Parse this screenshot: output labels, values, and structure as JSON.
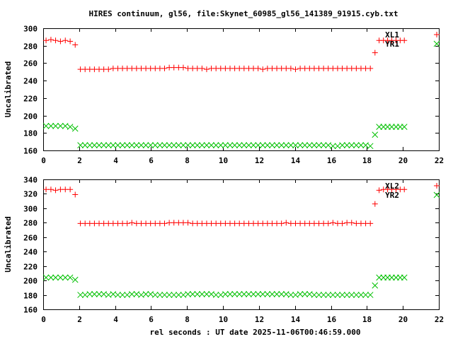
{
  "title": "HIRES continuum, gl56, file:Skynet_60985_gl56_141389_91915.cyb.txt",
  "colors": {
    "plus": "#ff0000",
    "cross": "#00c000",
    "axis": "#000000"
  },
  "chart_data": [
    {
      "type": "scatter",
      "ylabel": "Uncalibrated",
      "xlabel": "",
      "xlim": [
        0,
        22
      ],
      "ylim": [
        160,
        300
      ],
      "xticks": [
        0,
        2,
        4,
        6,
        8,
        10,
        12,
        14,
        16,
        18,
        20,
        22
      ],
      "yticks": [
        160,
        180,
        200,
        220,
        240,
        260,
        280,
        300
      ],
      "legend_position": "top-right",
      "x": [
        0.16,
        0.43,
        0.69,
        0.96,
        1.23,
        1.5,
        1.78,
        2.07,
        2.33,
        2.59,
        2.85,
        3.11,
        3.37,
        3.63,
        3.89,
        4.15,
        4.41,
        4.67,
        4.93,
        5.19,
        5.45,
        5.71,
        5.97,
        6.23,
        6.49,
        6.75,
        7.01,
        7.27,
        7.53,
        7.79,
        8.05,
        8.31,
        8.57,
        8.83,
        9.09,
        9.35,
        9.61,
        9.87,
        10.13,
        10.39,
        10.65,
        10.91,
        11.17,
        11.43,
        11.69,
        11.95,
        12.21,
        12.47,
        12.73,
        12.99,
        13.25,
        13.51,
        13.77,
        14.03,
        14.29,
        14.55,
        14.81,
        15.07,
        15.33,
        15.59,
        15.85,
        16.11,
        16.37,
        16.63,
        16.89,
        17.15,
        17.41,
        17.67,
        17.93,
        18.19,
        18.45,
        18.68,
        18.92,
        19.15,
        19.38,
        19.62,
        19.85,
        20.08
      ],
      "series": [
        {
          "name": "XL1",
          "marker": "plus",
          "values": [
            286,
            287,
            286,
            285,
            286,
            285,
            281,
            253,
            253,
            253,
            253,
            253,
            253,
            253,
            254,
            254,
            254,
            254,
            254,
            254,
            254,
            254,
            254,
            254,
            254,
            254,
            255,
            255,
            255,
            255,
            254,
            254,
            254,
            254,
            253,
            254,
            254,
            254,
            254,
            254,
            254,
            254,
            254,
            254,
            254,
            254,
            253,
            254,
            254,
            254,
            254,
            254,
            254,
            253,
            254,
            254,
            254,
            254,
            254,
            254,
            254,
            254,
            254,
            254,
            254,
            254,
            254,
            254,
            254,
            254,
            272,
            286,
            286,
            286,
            286,
            286,
            286,
            286
          ]
        },
        {
          "name": "YR1",
          "marker": "cross",
          "values": [
            188,
            188,
            188,
            188,
            188,
            187,
            185,
            166,
            166,
            166,
            166,
            166,
            166,
            166,
            166,
            166,
            166,
            166,
            166,
            166,
            166,
            166,
            166,
            166,
            166,
            166,
            166,
            166,
            166,
            166,
            166,
            166,
            166,
            166,
            166,
            166,
            166,
            166,
            166,
            166,
            166,
            166,
            166,
            166,
            166,
            166,
            166,
            166,
            166,
            166,
            166,
            166,
            166,
            166,
            166,
            166,
            166,
            166,
            166,
            166,
            166,
            165,
            165,
            166,
            166,
            166,
            166,
            166,
            166,
            165,
            178,
            187,
            187,
            187,
            187,
            187,
            187,
            187
          ]
        }
      ]
    },
    {
      "type": "scatter",
      "ylabel": "Uncalibrated",
      "xlabel": "rel seconds : UT date 2025-11-06T00:46:59.000",
      "xlim": [
        0,
        22
      ],
      "ylim": [
        160,
        340
      ],
      "xticks": [
        0,
        2,
        4,
        6,
        8,
        10,
        12,
        14,
        16,
        18,
        20,
        22
      ],
      "yticks": [
        160,
        180,
        200,
        220,
        240,
        260,
        280,
        300,
        320,
        340
      ],
      "legend_position": "top-right",
      "x": [
        0.16,
        0.43,
        0.69,
        0.96,
        1.23,
        1.5,
        1.78,
        2.07,
        2.33,
        2.59,
        2.85,
        3.11,
        3.37,
        3.63,
        3.89,
        4.15,
        4.41,
        4.67,
        4.93,
        5.19,
        5.45,
        5.71,
        5.97,
        6.23,
        6.49,
        6.75,
        7.01,
        7.27,
        7.53,
        7.79,
        8.05,
        8.31,
        8.57,
        8.83,
        9.09,
        9.35,
        9.61,
        9.87,
        10.13,
        10.39,
        10.65,
        10.91,
        11.17,
        11.43,
        11.69,
        11.95,
        12.21,
        12.47,
        12.73,
        12.99,
        13.25,
        13.51,
        13.77,
        14.03,
        14.29,
        14.55,
        14.81,
        15.07,
        15.33,
        15.59,
        15.85,
        16.11,
        16.37,
        16.63,
        16.89,
        17.15,
        17.41,
        17.67,
        17.93,
        18.19,
        18.45,
        18.68,
        18.92,
        19.15,
        19.38,
        19.62,
        19.85,
        20.08
      ],
      "series": [
        {
          "name": "XL2",
          "marker": "plus",
          "values": [
            326,
            326,
            325,
            326,
            326,
            326,
            319,
            279,
            279,
            279,
            279,
            279,
            279,
            279,
            279,
            279,
            279,
            279,
            280,
            279,
            279,
            279,
            279,
            279,
            279,
            279,
            280,
            280,
            280,
            280,
            280,
            279,
            279,
            279,
            279,
            279,
            279,
            279,
            279,
            279,
            279,
            279,
            279,
            279,
            279,
            279,
            279,
            279,
            279,
            279,
            279,
            280,
            279,
            279,
            279,
            279,
            279,
            279,
            279,
            279,
            279,
            280,
            279,
            279,
            280,
            280,
            279,
            279,
            279,
            279,
            306,
            325,
            326,
            326,
            326,
            326,
            326,
            326
          ]
        },
        {
          "name": "YR2",
          "marker": "cross",
          "values": [
            204,
            204,
            204,
            204,
            204,
            204,
            201,
            180,
            180,
            181,
            181,
            181,
            181,
            180,
            181,
            180,
            180,
            180,
            181,
            181,
            180,
            181,
            181,
            180,
            180,
            180,
            180,
            180,
            180,
            180,
            181,
            181,
            181,
            181,
            181,
            181,
            180,
            180,
            181,
            181,
            181,
            181,
            181,
            181,
            181,
            181,
            181,
            181,
            181,
            181,
            181,
            181,
            180,
            180,
            181,
            181,
            181,
            180,
            180,
            180,
            180,
            180,
            180,
            180,
            180,
            180,
            180,
            180,
            180,
            180,
            193,
            204,
            204,
            204,
            204,
            204,
            204,
            204
          ]
        }
      ]
    }
  ]
}
